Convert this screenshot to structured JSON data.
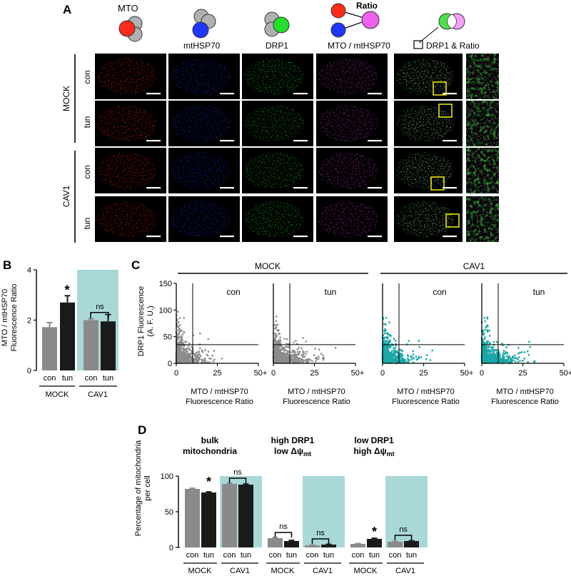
{
  "panel_letters": {
    "a": "A",
    "b": "B",
    "c": "C",
    "d": "D"
  },
  "panel_a": {
    "column_headers": [
      "MTO",
      "mtHSP70",
      "DRP1",
      "MTO / mtHSP70",
      "DRP1 & Ratio"
    ],
    "ratio_label": "Ratio",
    "group_labels": [
      "MOCK",
      "CAV1"
    ],
    "row_labels": [
      "con",
      "tun",
      "con",
      "tun"
    ],
    "column_colors": [
      "#ff2a1a",
      "#2035ff",
      "#22e02a",
      "#d840d8",
      "#40e040"
    ]
  },
  "chart_data": [
    {
      "id": "B",
      "type": "bar",
      "ylabel": "MTO / mtHSP70 Fluorescence Ratio",
      "ylim": [
        0,
        4
      ],
      "yticks": [
        "0",
        "2",
        "4"
      ],
      "categories": [
        "con",
        "tun",
        "con",
        "tun"
      ],
      "groups": [
        "MOCK",
        "CAV1"
      ],
      "values": [
        1.72,
        2.7,
        2.0,
        1.95
      ],
      "errors": [
        0.18,
        0.27,
        0.05,
        0.27
      ],
      "colors": [
        "#8a8a8a",
        "#1a1a1a",
        "#8a8a8a",
        "#1a1a1a"
      ],
      "annotations": {
        "star": "*",
        "ns": "ns"
      },
      "highlight": "CAV1",
      "highlight_color": "#a9d8d8"
    },
    {
      "id": "C",
      "type": "scatter",
      "ylabel": "DRP1 Fluorescence (A. F. U.)",
      "xlabel": "MTO / mtHSP70 Fluorescence Ratio",
      "xticks": [
        "0",
        "25",
        "50+"
      ],
      "yticks": [
        "0",
        "50",
        "100",
        "150"
      ],
      "xlim": [
        0,
        50
      ],
      "ylim": [
        0,
        150
      ],
      "groups": [
        "MOCK",
        "CAV1"
      ],
      "threshold_x": 10,
      "threshold_y": 35,
      "panels": [
        {
          "group": "MOCK",
          "condition": "con",
          "color": "#8c8c8c"
        },
        {
          "group": "MOCK",
          "condition": "tun",
          "color": "#8c8c8c"
        },
        {
          "group": "CAV1",
          "condition": "con",
          "color": "#1aa7a7"
        },
        {
          "group": "CAV1",
          "condition": "tun",
          "color": "#1aa7a7"
        }
      ]
    },
    {
      "id": "D",
      "type": "bar",
      "ylabel": "Percentage of mitochondria per cell",
      "ylim": [
        0,
        100
      ],
      "yticks": [
        "0",
        "50",
        "100"
      ],
      "subsets": [
        {
          "title_line1": "bulk",
          "title_line2": "mitochondria",
          "values": [
            82,
            77,
            89,
            88
          ],
          "errors": [
            1,
            1,
            1,
            1
          ],
          "annotations": [
            "*",
            "ns"
          ]
        },
        {
          "title_line1": "high DRP1",
          "title_line2": "low Δψ",
          "subscript": "mt",
          "values": [
            13,
            9,
            3,
            4
          ],
          "errors": [
            1,
            1,
            0.5,
            0.5
          ],
          "annotations": [
            "ns",
            "ns"
          ]
        },
        {
          "title_line1": "low DRP1",
          "title_line2": "high Δψ",
          "subscript": "mt",
          "values": [
            5,
            12,
            8,
            9
          ],
          "errors": [
            0.5,
            1,
            0.5,
            0.5
          ],
          "annotations": [
            "*",
            "ns"
          ]
        }
      ],
      "categories": [
        "con",
        "tun",
        "con",
        "tun"
      ],
      "groups": [
        "MOCK",
        "CAV1"
      ],
      "colors": [
        "#8a8a8a",
        "#1a1a1a",
        "#8a8a8a",
        "#1a1a1a"
      ],
      "highlight_color": "#a9d8d8"
    }
  ]
}
